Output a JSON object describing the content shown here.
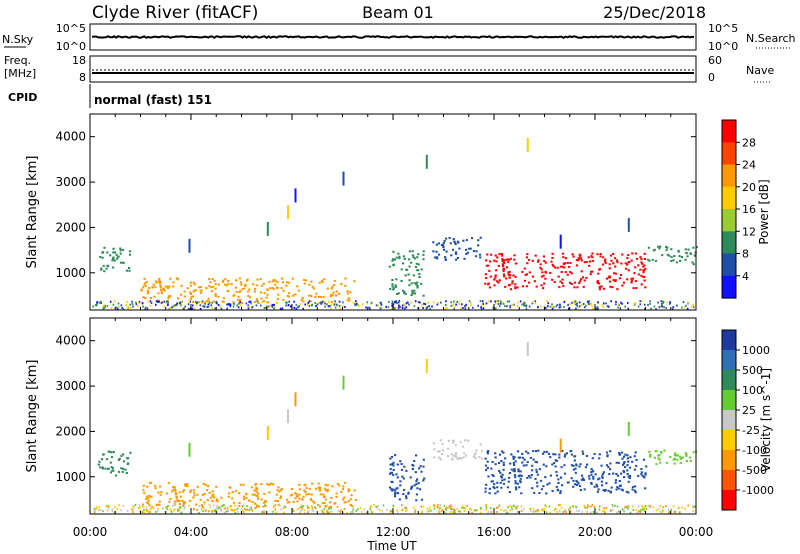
{
  "header": {
    "station": "Clyde River (fitACF)",
    "beam": "Beam 01",
    "date": "25/Dec/2018"
  },
  "top_panels": {
    "nsky_label": "N.Sky",
    "nsearch_label": "N.Search",
    "nsky_ticks": [
      "10^5",
      "10^0"
    ],
    "nsearch_ticks": [
      "10^5",
      "10^0"
    ],
    "freq_label_1": "Freq.",
    "freq_label_2": "[MHz]",
    "freq_ticks": [
      "18",
      "8"
    ],
    "nave_label": "Nave",
    "nave_ticks": [
      "60",
      "0"
    ],
    "cpid_label": "CPID",
    "cpid_value": "normal (fast) 151"
  },
  "chart_data": [
    {
      "type": "heatmap",
      "quantity": "power",
      "ylabel": "Slant Range [km]",
      "colorbar_label": "Power [dB]",
      "colorbar_ticks": [
        "28",
        "24",
        "20",
        "16",
        "12",
        "8",
        "4"
      ],
      "colorbar_colors": [
        "#ff0000",
        "#ff4400",
        "#ff9900",
        "#ffcc00",
        "#9acd32",
        "#2e8b57",
        "#1e4ea8",
        "#1010ff"
      ],
      "y_ticks": [
        "4000",
        "3000",
        "2000",
        "1000"
      ],
      "ylim": [
        180,
        4500
      ],
      "xlim_hours": [
        0,
        24
      ],
      "regions": [
        {
          "t0": 0.3,
          "t1": 1.6,
          "r0": 1050,
          "r1": 1600,
          "color": "#2e8b57"
        },
        {
          "t0": 2.0,
          "t1": 10.5,
          "r0": 350,
          "r1": 900,
          "color": "#ff9900"
        },
        {
          "t0": 11.8,
          "t1": 13.2,
          "r0": 500,
          "r1": 1500,
          "color": "#2e8b57"
        },
        {
          "t0": 13.5,
          "t1": 15.5,
          "r0": 1300,
          "r1": 1800,
          "color": "#1e4ea8"
        },
        {
          "t0": 15.6,
          "t1": 22.0,
          "r0": 650,
          "r1": 1450,
          "color": "#ff0000"
        },
        {
          "t0": 22.0,
          "t1": 24.0,
          "r0": 1200,
          "r1": 1600,
          "color": "#2e8b57"
        }
      ]
    },
    {
      "type": "heatmap",
      "quantity": "velocity",
      "ylabel": "Slant Range [km]",
      "xlabel": "Time UT",
      "colorbar_label": "Velocity [m s^-1]",
      "colorbar_ticks": [
        "1000",
        "500",
        "100",
        "25",
        "-25",
        "-100",
        "-500",
        "-1000"
      ],
      "colorbar_colors": [
        "#1e3a9e",
        "#2e6fb5",
        "#2e8b57",
        "#66cc33",
        "#c8c8c8",
        "#ffcc00",
        "#ff9900",
        "#ff5500",
        "#ff0000"
      ],
      "x_ticks": [
        "00:00",
        "04:00",
        "08:00",
        "12:00",
        "16:00",
        "20:00",
        "00:00"
      ],
      "y_ticks": [
        "4000",
        "3000",
        "2000",
        "1000"
      ],
      "ylim": [
        180,
        4500
      ],
      "xlim_hours": [
        0,
        24
      ],
      "regions": [
        {
          "t0": 0.3,
          "t1": 1.6,
          "r0": 1050,
          "r1": 1600,
          "color": "#2e8b57"
        },
        {
          "t0": 2.0,
          "t1": 10.5,
          "r0": 350,
          "r1": 900,
          "color": "#ff9900"
        },
        {
          "t0": 11.8,
          "t1": 13.2,
          "r0": 500,
          "r1": 1500,
          "color": "#1e4ea8"
        },
        {
          "t0": 13.5,
          "t1": 15.5,
          "r0": 1400,
          "r1": 1850,
          "color": "#c8c8c8"
        },
        {
          "t0": 15.6,
          "t1": 22.0,
          "r0": 650,
          "r1": 1600,
          "color": "#1e4ea8"
        },
        {
          "t0": 22.0,
          "t1": 24.0,
          "r0": 1300,
          "r1": 1600,
          "color": "#66cc33"
        }
      ]
    }
  ]
}
